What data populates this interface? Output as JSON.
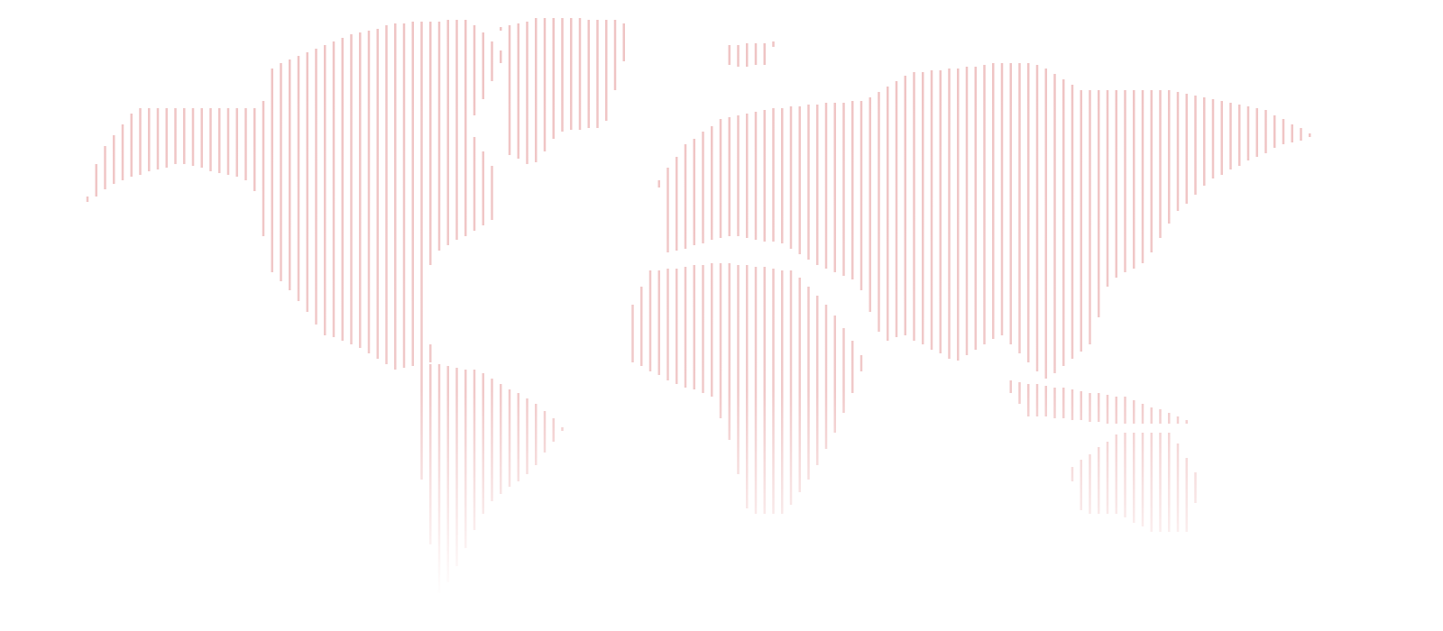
{
  "map": {
    "style": "dotted-line world map",
    "line_color": "#efc3c3",
    "background": "#ffffff",
    "fade": "bottom"
  }
}
